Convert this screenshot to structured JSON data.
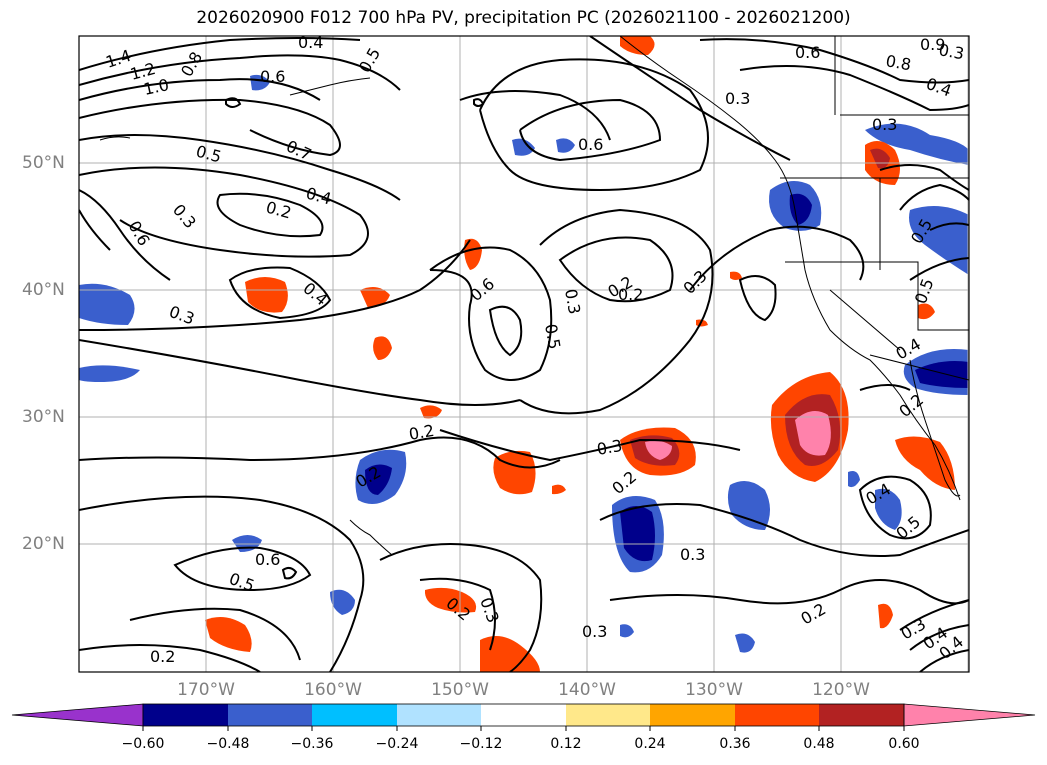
{
  "title": "2026020900 F012 700 hPa PV, precipitation PC (2026021100 - 2026021200)",
  "map": {
    "longitude_labels": [
      "170°W",
      "160°W",
      "150°W",
      "140°W",
      "130°W",
      "120°W"
    ],
    "latitude_labels": [
      "50°N",
      "40°N",
      "30°N",
      "20°N"
    ],
    "pv_contour_labels": [
      "1.4",
      "1.2",
      "1.0",
      "0.8",
      "0.6",
      "0.4",
      "0.5",
      "0.7",
      "0.5",
      "0.4",
      "0.6",
      "0.3",
      "0.2",
      "0.4",
      "0.3",
      "0.6",
      "0.5",
      "0.3",
      "0.2",
      "0.3",
      "0.6",
      "0.3",
      "0.3",
      "0.2",
      "0.2",
      "0.3",
      "0.2",
      "0.3",
      "0.6",
      "0.5",
      "0.2",
      "0.3",
      "0.2",
      "0.2",
      "0.4",
      "0.5",
      "0.2",
      "0.3",
      "0.4",
      "0.4",
      "0.5",
      "0.6",
      "0.8",
      "0.9",
      "0.3",
      "0.4",
      "0.2",
      "0.4",
      "0.5",
      "0.3"
    ]
  },
  "colorbar": {
    "tick_labels": [
      "−0.60",
      "−0.48",
      "−0.36",
      "−0.24",
      "−0.12",
      "0.12",
      "0.24",
      "0.36",
      "0.48",
      "0.60"
    ],
    "colors": [
      "#9932cc",
      "#00008b",
      "#3a5fcd",
      "#00bfff",
      "#b0e2ff",
      "#ffffff",
      "#ffe88a",
      "#ffa500",
      "#ff4500",
      "#b22222",
      "#ff82ab"
    ]
  }
}
